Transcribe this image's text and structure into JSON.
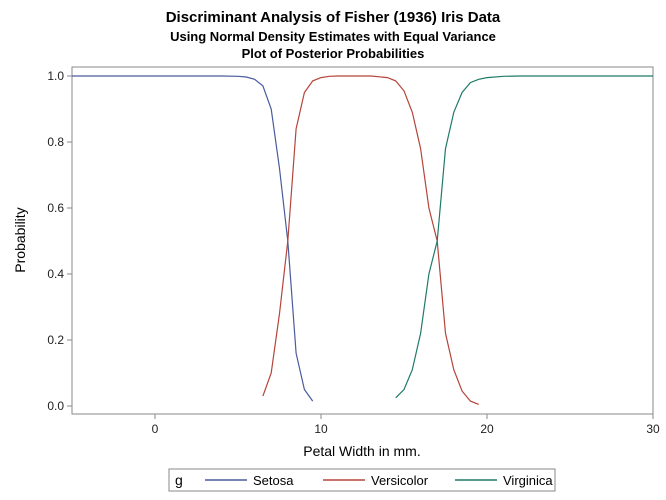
{
  "chart_data": {
    "type": "line",
    "title": "Discriminant Analysis of Fisher (1936) Iris Data",
    "subtitle": "Using Normal Density Estimates with Equal Variance",
    "subtitle2": "Plot of Posterior Probabilities",
    "xlabel": "Petal Width in mm.",
    "ylabel": "Probability",
    "xlim": [
      -5,
      30
    ],
    "ylim": [
      0,
      1
    ],
    "xticks": [
      "0",
      "10",
      "20",
      "30"
    ],
    "xtick_values": [
      0,
      10,
      20,
      30
    ],
    "yticks": [
      "0.0",
      "0.2",
      "0.4",
      "0.6",
      "0.8",
      "1.0"
    ],
    "ytick_values": [
      0,
      0.2,
      0.4,
      0.6,
      0.8,
      1.0
    ],
    "grid": false,
    "legend_title": "g",
    "legend_position": "bottom",
    "series": [
      {
        "name": "Setosa",
        "color": "#4a5b9c",
        "x": [
          -5,
          0,
          3,
          4,
          5,
          5.5,
          6,
          6.5,
          7,
          7.5,
          8,
          8.5,
          9,
          9.5
        ],
        "y": [
          1.0,
          1.0,
          1.0,
          1.0,
          0.999,
          0.997,
          0.99,
          0.97,
          0.9,
          0.72,
          0.5,
          0.16,
          0.05,
          0.015
        ]
      },
      {
        "name": "Versicolor",
        "color": "#b5443a",
        "x": [
          6.5,
          7,
          7.5,
          8,
          8.5,
          9,
          9.5,
          10,
          10.5,
          11,
          12,
          13,
          14,
          14.5,
          15,
          15.5,
          16,
          16.5,
          17,
          17.5,
          18,
          18.5,
          19,
          19.5
        ],
        "y": [
          0.03,
          0.1,
          0.28,
          0.5,
          0.84,
          0.95,
          0.985,
          0.995,
          0.999,
          1.0,
          1.0,
          1.0,
          0.995,
          0.985,
          0.955,
          0.89,
          0.78,
          0.6,
          0.5,
          0.22,
          0.11,
          0.045,
          0.015,
          0.005
        ]
      },
      {
        "name": "Virginica",
        "color": "#1f7a69",
        "x": [
          14.5,
          15,
          15.5,
          16,
          16.5,
          17,
          17.5,
          18,
          18.5,
          19,
          19.5,
          20,
          21,
          22,
          25,
          30
        ],
        "y": [
          0.025,
          0.05,
          0.11,
          0.22,
          0.4,
          0.5,
          0.78,
          0.89,
          0.95,
          0.98,
          0.99,
          0.995,
          0.999,
          1.0,
          1.0,
          1.0
        ]
      }
    ]
  }
}
